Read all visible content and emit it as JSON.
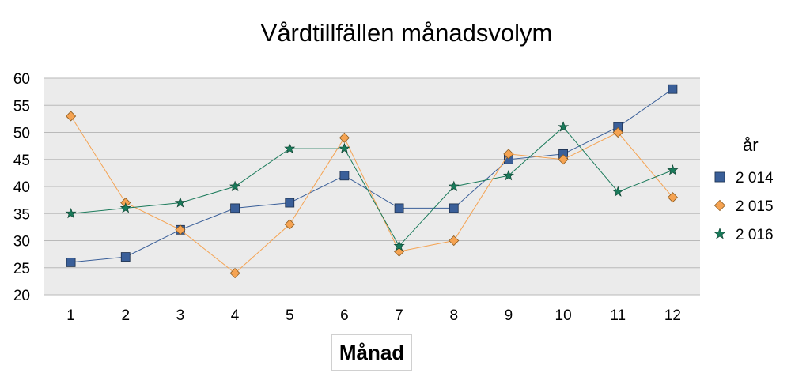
{
  "chart_data": {
    "type": "line",
    "title": "Vårdtillfällen månadsvolym",
    "xlabel": "Månad",
    "ylabel": "",
    "ylim": [
      20,
      60
    ],
    "yticks": [
      20,
      25,
      30,
      35,
      40,
      45,
      50,
      55,
      60
    ],
    "categories": [
      "1",
      "2",
      "3",
      "4",
      "5",
      "6",
      "7",
      "8",
      "9",
      "10",
      "11",
      "12"
    ],
    "grid": true,
    "legend_title": "år",
    "legend_position": "right",
    "series": [
      {
        "name": "2 014",
        "marker": "square",
        "color": "#3a5f99",
        "values": [
          26,
          27,
          32,
          36,
          37,
          42,
          36,
          36,
          45,
          46,
          51,
          58
        ]
      },
      {
        "name": "2 015",
        "marker": "diamond",
        "color": "#f5a352",
        "values": [
          53,
          37,
          32,
          24,
          33,
          49,
          28,
          30,
          46,
          45,
          50,
          38
        ]
      },
      {
        "name": "2 016",
        "marker": "star",
        "color": "#1a7a5a",
        "values": [
          35,
          36,
          37,
          40,
          47,
          47,
          29,
          40,
          42,
          51,
          39,
          43
        ]
      }
    ]
  }
}
